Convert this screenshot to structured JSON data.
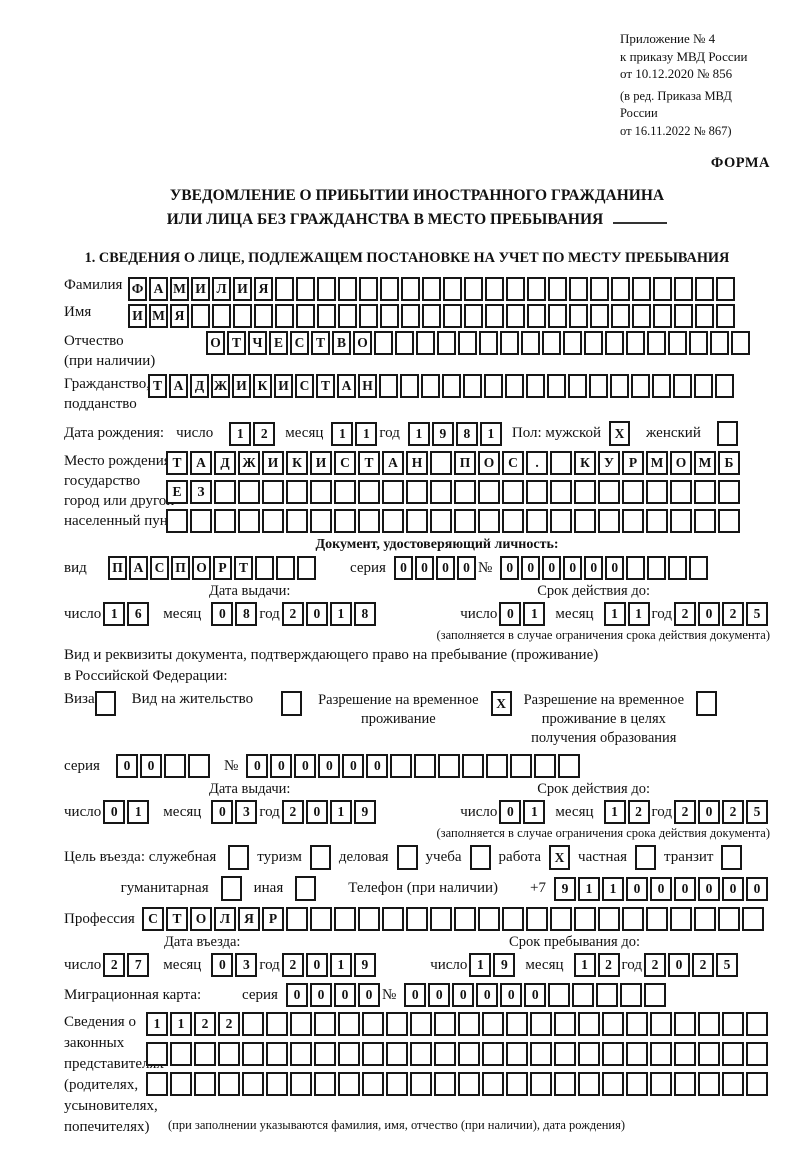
{
  "header": {
    "annex_lines": [
      "Приложение № 4",
      "к приказу МВД России",
      "от 10.12.2020 № 856"
    ],
    "annex_note_lines": [
      "(в ред. Приказа МВД России",
      "от 16.11.2022 № 867)"
    ],
    "form_label": "ФОРМА"
  },
  "title": {
    "line1": "УВЕДОМЛЕНИЕ О ПРИБЫТИИ ИНОСТРАННОГО ГРАЖДАНИНА",
    "line2": "ИЛИ ЛИЦА БЕЗ ГРАЖДАНСТВА В МЕСТО ПРЕБЫВАНИЯ"
  },
  "section1_heading": "1. СВЕДЕНИЯ О ЛИЦЕ, ПОДЛЕЖАЩЕМ ПОСТАНОВКЕ НА УЧЕТ ПО МЕСТУ ПРЕБЫВАНИЯ",
  "labels": {
    "surname": "Фамилия",
    "given_name": "Имя",
    "patronymic": "Отчество",
    "patronymic_note": "(при наличии)",
    "citizenship1": "Гражданство,",
    "citizenship2": "подданство",
    "birth_date": "Дата рождения:",
    "day": "число",
    "month": "месяц",
    "year": "год",
    "sex_male": "Пол: мужской",
    "sex_female": "женский",
    "birth_place": "Место рождения:",
    "state": "государство",
    "city1": "город или другой",
    "city2": "населенный пункт",
    "identity_doc_heading": "Документ, удостоверяющий личность:",
    "doc_type": "вид",
    "series": "серия",
    "number_sign": "№",
    "issue_date": "Дата выдачи:",
    "valid_until": "Срок действия до:",
    "validity_note": "(заполняется в случае ограничения срока действия документа)",
    "residence_doc_line1": "Вид и реквизиты документа, подтверждающего право на пребывание (проживание)",
    "residence_doc_line2": "в Российской Федерации:",
    "visa": "Виза",
    "residence_permit": "Вид на жительство",
    "temp_residence_line1": "Разрешение на временное",
    "temp_residence_line2": "проживание",
    "temp_residence_edu_line1": "Разрешение на временное",
    "temp_residence_edu_line2": "проживание в целях",
    "temp_residence_edu_line3": "получения образования",
    "visit_purpose": "Цель въезда: служебная",
    "tourism": "туризм",
    "business": "деловая",
    "study": "учеба",
    "work": "работа",
    "private": "частная",
    "transit": "транзит",
    "humanitarian": "гуманитарная",
    "other": "иная",
    "phone": "Телефон (при наличии)",
    "phone_prefix": "+7",
    "profession": "Профессия",
    "entry_date": "Дата въезда:",
    "stay_until": "Срок пребывания до:",
    "migration_card": "Миграционная карта:",
    "representatives_lines": [
      "Сведения о",
      "законных",
      "представителях",
      "(родителях,",
      "усыновителях,",
      "попечителях)"
    ],
    "representatives_note": "(при заполнении указываются фамилия, имя, отчество (при наличии), дата рождения)"
  },
  "checkboxes": {
    "male": "X",
    "female": "",
    "visa": "",
    "residence_permit": "",
    "temp_residence": "X",
    "temp_residence_edu": "",
    "official": "",
    "tourism": "",
    "business": "",
    "study": "",
    "work": "X",
    "private": "",
    "transit": "",
    "humanitarian": "",
    "other": ""
  },
  "fields": {
    "surname": {
      "text": "ФАМИЛИЯ",
      "len": 29
    },
    "given_name": {
      "text": "ИМЯ",
      "len": 29
    },
    "patronymic": {
      "text": "ОТЧЕСТВО",
      "len": 26
    },
    "citizenship": {
      "text": "ТАДЖИКИСТАН",
      "len": 28
    },
    "birth_day": {
      "text": "12",
      "len": 2
    },
    "birth_month": {
      "text": "11",
      "len": 2
    },
    "birth_year": {
      "text": "1981",
      "len": 4
    },
    "birth_place_row1": {
      "text": "ТАДЖИКИСТАН ПОС. КУРМОМБ",
      "len": 24
    },
    "birth_place_row2": {
      "text": "ЕЗ",
      "len": 24
    },
    "birth_place_row3": {
      "text": "",
      "len": 24
    },
    "doc_type": {
      "text": "ПАСПОРТ",
      "len": 10
    },
    "doc_series": {
      "text": "0000",
      "len": 4
    },
    "doc_number": {
      "text": "000000",
      "len": 10
    },
    "doc_issue_day": {
      "text": "16",
      "len": 2
    },
    "doc_issue_month": {
      "text": "08",
      "len": 2
    },
    "doc_issue_year": {
      "text": "2018",
      "len": 4
    },
    "doc_valid_day": {
      "text": "01",
      "len": 2
    },
    "doc_valid_month": {
      "text": "11",
      "len": 2
    },
    "doc_valid_year": {
      "text": "2025",
      "len": 4
    },
    "permit_series": {
      "text": "00",
      "len": 4
    },
    "permit_number": {
      "text": "000000",
      "len": 14
    },
    "permit_issue_day": {
      "text": "01",
      "len": 2
    },
    "permit_issue_month": {
      "text": "03",
      "len": 2
    },
    "permit_issue_year": {
      "text": "2019",
      "len": 4
    },
    "permit_valid_day": {
      "text": "01",
      "len": 2
    },
    "permit_valid_month": {
      "text": "12",
      "len": 2
    },
    "permit_valid_year": {
      "text": "2025",
      "len": 4
    },
    "phone": {
      "text": "911000000",
      "len": 9
    },
    "profession": {
      "text": "СТОЛЯР",
      "len": 26
    },
    "entry_day": {
      "text": "27",
      "len": 2
    },
    "entry_month": {
      "text": "03",
      "len": 2
    },
    "entry_year": {
      "text": "2019",
      "len": 4
    },
    "stay_day": {
      "text": "19",
      "len": 2
    },
    "stay_month": {
      "text": "12",
      "len": 2
    },
    "stay_year": {
      "text": "2025",
      "len": 4
    },
    "mig_series": {
      "text": "0000",
      "len": 4
    },
    "mig_number": {
      "text": "000000",
      "len": 11
    },
    "rep_row1": {
      "text": "1122",
      "len": 26
    },
    "rep_row2": {
      "text": "",
      "len": 26
    },
    "rep_row3": {
      "text": "",
      "len": 26
    }
  }
}
